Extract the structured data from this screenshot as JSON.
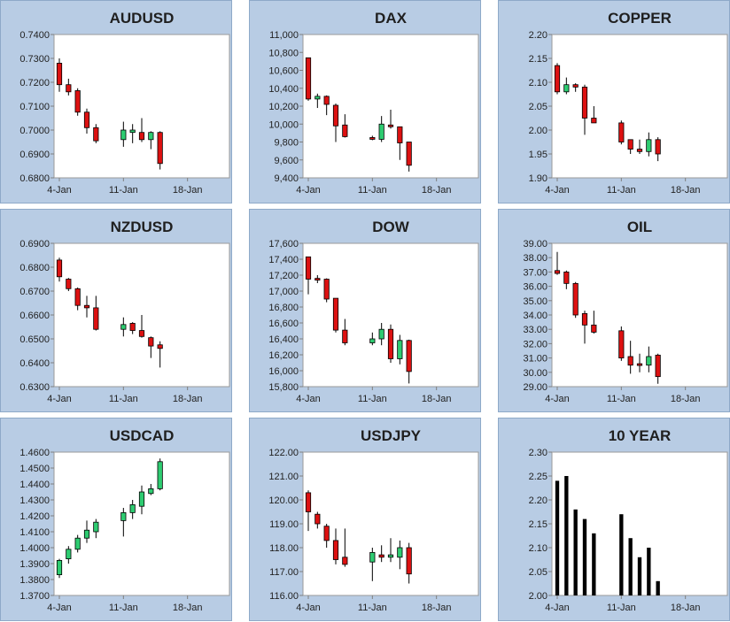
{
  "chart_data": [
    {
      "id": "audusd",
      "type": "candlestick",
      "title": "AUDUSD",
      "ylim": [
        0.68,
        0.74
      ],
      "yticks": [
        0.68,
        0.69,
        0.7,
        0.71,
        0.72,
        0.73,
        0.74
      ],
      "ydecimals": 4,
      "xlim": [
        4,
        22
      ],
      "xticks": [
        {
          "x": 4,
          "label": "4-Jan"
        },
        {
          "x": 11,
          "label": "11-Jan"
        },
        {
          "x": 18,
          "label": "18-Jan"
        }
      ],
      "candles": [
        {
          "x": 4,
          "o": 0.728,
          "h": 0.73,
          "l": 0.716,
          "c": 0.719,
          "dir": "down"
        },
        {
          "x": 5,
          "o": 0.719,
          "h": 0.7215,
          "l": 0.7145,
          "c": 0.716,
          "dir": "down"
        },
        {
          "x": 6,
          "o": 0.7165,
          "h": 0.7175,
          "l": 0.706,
          "c": 0.7075,
          "dir": "down"
        },
        {
          "x": 7,
          "o": 0.7075,
          "h": 0.709,
          "l": 0.6985,
          "c": 0.701,
          "dir": "down"
        },
        {
          "x": 8,
          "o": 0.701,
          "h": 0.7025,
          "l": 0.6945,
          "c": 0.6955,
          "dir": "down"
        },
        {
          "x": 11,
          "o": 0.696,
          "h": 0.7035,
          "l": 0.693,
          "c": 0.7,
          "dir": "up"
        },
        {
          "x": 12,
          "o": 0.699,
          "h": 0.7025,
          "l": 0.6945,
          "c": 0.7,
          "dir": "up"
        },
        {
          "x": 13,
          "o": 0.699,
          "h": 0.705,
          "l": 0.695,
          "c": 0.696,
          "dir": "down"
        },
        {
          "x": 14,
          "o": 0.696,
          "h": 0.6995,
          "l": 0.692,
          "c": 0.699,
          "dir": "up"
        },
        {
          "x": 15,
          "o": 0.699,
          "h": 0.6995,
          "l": 0.6835,
          "c": 0.686,
          "dir": "down"
        }
      ]
    },
    {
      "id": "dax",
      "type": "candlestick",
      "title": "DAX",
      "ylim": [
        9400,
        11000
      ],
      "yticks": [
        9400,
        9600,
        9800,
        10000,
        10200,
        10400,
        10600,
        10800,
        11000
      ],
      "ydecimals": 0,
      "xlim": [
        4,
        22
      ],
      "xticks": [
        {
          "x": 4,
          "label": "4-Jan"
        },
        {
          "x": 11,
          "label": "11-Jan"
        },
        {
          "x": 18,
          "label": "18-Jan"
        }
      ],
      "candles": [
        {
          "x": 4,
          "o": 10740,
          "h": 10740,
          "l": 10260,
          "c": 10280,
          "dir": "down"
        },
        {
          "x": 5,
          "o": 10280,
          "h": 10340,
          "l": 10180,
          "c": 10310,
          "dir": "up"
        },
        {
          "x": 6,
          "o": 10310,
          "h": 10320,
          "l": 10100,
          "c": 10220,
          "dir": "down"
        },
        {
          "x": 7,
          "o": 10210,
          "h": 10230,
          "l": 9800,
          "c": 9980,
          "dir": "down"
        },
        {
          "x": 8,
          "o": 9990,
          "h": 10110,
          "l": 9850,
          "c": 9860,
          "dir": "down"
        },
        {
          "x": 11,
          "o": 9850,
          "h": 9870,
          "l": 9820,
          "c": 9830,
          "dir": "down"
        },
        {
          "x": 12,
          "o": 9830,
          "h": 10090,
          "l": 9800,
          "c": 10000,
          "dir": "up"
        },
        {
          "x": 13,
          "o": 9990,
          "h": 10160,
          "l": 9950,
          "c": 9970,
          "dir": "down"
        },
        {
          "x": 14,
          "o": 9970,
          "h": 9970,
          "l": 9600,
          "c": 9790,
          "dir": "down"
        },
        {
          "x": 15,
          "o": 9800,
          "h": 9800,
          "l": 9470,
          "c": 9540,
          "dir": "down"
        }
      ]
    },
    {
      "id": "copper",
      "type": "candlestick",
      "title": "COPPER",
      "ylim": [
        1.9,
        2.2
      ],
      "yticks": [
        1.9,
        1.95,
        2.0,
        2.05,
        2.1,
        2.15,
        2.2
      ],
      "ydecimals": 2,
      "xlim": [
        4,
        22
      ],
      "xticks": [
        {
          "x": 4,
          "label": "4-Jan"
        },
        {
          "x": 11,
          "label": "11-Jan"
        },
        {
          "x": 18,
          "label": "18-Jan"
        }
      ],
      "candles": [
        {
          "x": 4,
          "o": 2.135,
          "h": 2.14,
          "l": 2.075,
          "c": 2.08,
          "dir": "down"
        },
        {
          "x": 5,
          "o": 2.08,
          "h": 2.11,
          "l": 2.075,
          "c": 2.095,
          "dir": "up"
        },
        {
          "x": 6,
          "o": 2.095,
          "h": 2.098,
          "l": 2.08,
          "c": 2.09,
          "dir": "down"
        },
        {
          "x": 7,
          "o": 2.09,
          "h": 2.095,
          "l": 1.99,
          "c": 2.025,
          "dir": "down"
        },
        {
          "x": 8,
          "o": 2.025,
          "h": 2.05,
          "l": 2.015,
          "c": 2.015,
          "dir": "down"
        },
        {
          "x": 11,
          "o": 2.015,
          "h": 2.02,
          "l": 1.97,
          "c": 1.975,
          "dir": "down"
        },
        {
          "x": 12,
          "o": 1.98,
          "h": 1.98,
          "l": 1.95,
          "c": 1.96,
          "dir": "down"
        },
        {
          "x": 13,
          "o": 1.96,
          "h": 1.98,
          "l": 1.95,
          "c": 1.955,
          "dir": "down"
        },
        {
          "x": 14,
          "o": 1.955,
          "h": 1.995,
          "l": 1.945,
          "c": 1.98,
          "dir": "up"
        },
        {
          "x": 15,
          "o": 1.98,
          "h": 1.985,
          "l": 1.935,
          "c": 1.95,
          "dir": "down"
        }
      ]
    },
    {
      "id": "nzdusd",
      "type": "candlestick",
      "title": "NZDUSD",
      "ylim": [
        0.63,
        0.69
      ],
      "yticks": [
        0.63,
        0.64,
        0.65,
        0.66,
        0.67,
        0.68,
        0.69
      ],
      "ydecimals": 4,
      "xlim": [
        4,
        22
      ],
      "xticks": [
        {
          "x": 4,
          "label": "4-Jan"
        },
        {
          "x": 11,
          "label": "11-Jan"
        },
        {
          "x": 18,
          "label": "18-Jan"
        }
      ],
      "candles": [
        {
          "x": 4,
          "o": 0.683,
          "h": 0.684,
          "l": 0.674,
          "c": 0.676,
          "dir": "down"
        },
        {
          "x": 5,
          "o": 0.675,
          "h": 0.6755,
          "l": 0.67,
          "c": 0.671,
          "dir": "down"
        },
        {
          "x": 6,
          "o": 0.671,
          "h": 0.6715,
          "l": 0.662,
          "c": 0.664,
          "dir": "down"
        },
        {
          "x": 7,
          "o": 0.664,
          "h": 0.668,
          "l": 0.659,
          "c": 0.663,
          "dir": "down"
        },
        {
          "x": 8,
          "o": 0.663,
          "h": 0.668,
          "l": 0.6535,
          "c": 0.654,
          "dir": "down"
        },
        {
          "x": 11,
          "o": 0.654,
          "h": 0.659,
          "l": 0.651,
          "c": 0.656,
          "dir": "up"
        },
        {
          "x": 12,
          "o": 0.6565,
          "h": 0.657,
          "l": 0.652,
          "c": 0.6535,
          "dir": "down"
        },
        {
          "x": 13,
          "o": 0.6535,
          "h": 0.66,
          "l": 0.6505,
          "c": 0.651,
          "dir": "down"
        },
        {
          "x": 14,
          "o": 0.6505,
          "h": 0.651,
          "l": 0.642,
          "c": 0.647,
          "dir": "down"
        },
        {
          "x": 15,
          "o": 0.6475,
          "h": 0.649,
          "l": 0.638,
          "c": 0.646,
          "dir": "down"
        }
      ]
    },
    {
      "id": "dow",
      "type": "candlestick",
      "title": "DOW",
      "ylim": [
        15800,
        17600
      ],
      "yticks": [
        15800,
        16000,
        16200,
        16400,
        16600,
        16800,
        17000,
        17200,
        17400,
        17600
      ],
      "ydecimals": 0,
      "xlim": [
        4,
        22
      ],
      "xticks": [
        {
          "x": 4,
          "label": "4-Jan"
        },
        {
          "x": 11,
          "label": "11-Jan"
        },
        {
          "x": 18,
          "label": "18-Jan"
        }
      ],
      "candles": [
        {
          "x": 4,
          "o": 17430,
          "h": 17430,
          "l": 16960,
          "c": 17150,
          "dir": "down"
        },
        {
          "x": 5,
          "o": 17160,
          "h": 17200,
          "l": 17100,
          "c": 17150,
          "dir": "down"
        },
        {
          "x": 6,
          "o": 17150,
          "h": 17160,
          "l": 16860,
          "c": 16900,
          "dir": "down"
        },
        {
          "x": 7,
          "o": 16910,
          "h": 16910,
          "l": 16480,
          "c": 16510,
          "dir": "down"
        },
        {
          "x": 8,
          "o": 16510,
          "h": 16650,
          "l": 16320,
          "c": 16350,
          "dir": "down"
        },
        {
          "x": 11,
          "o": 16350,
          "h": 16480,
          "l": 16320,
          "c": 16400,
          "dir": "up"
        },
        {
          "x": 12,
          "o": 16400,
          "h": 16600,
          "l": 16320,
          "c": 16520,
          "dir": "up"
        },
        {
          "x": 13,
          "o": 16520,
          "h": 16580,
          "l": 16100,
          "c": 16150,
          "dir": "down"
        },
        {
          "x": 14,
          "o": 16150,
          "h": 16450,
          "l": 16080,
          "c": 16380,
          "dir": "up"
        },
        {
          "x": 15,
          "o": 16380,
          "h": 16390,
          "l": 15840,
          "c": 15990,
          "dir": "down"
        }
      ]
    },
    {
      "id": "oil",
      "type": "candlestick",
      "title": "OIL",
      "ylim": [
        29,
        39
      ],
      "yticks": [
        29,
        30,
        31,
        32,
        33,
        34,
        35,
        36,
        37,
        38,
        39
      ],
      "ydecimals": 2,
      "xlim": [
        4,
        22
      ],
      "xticks": [
        {
          "x": 4,
          "label": "4-Jan"
        },
        {
          "x": 11,
          "label": "11-Jan"
        },
        {
          "x": 18,
          "label": "18-Jan"
        }
      ],
      "candles": [
        {
          "x": 4,
          "o": 37.1,
          "h": 38.4,
          "l": 36.8,
          "c": 36.9,
          "dir": "down"
        },
        {
          "x": 5,
          "o": 37.0,
          "h": 37.1,
          "l": 35.8,
          "c": 36.2,
          "dir": "down"
        },
        {
          "x": 6,
          "o": 36.2,
          "h": 36.3,
          "l": 33.8,
          "c": 34.0,
          "dir": "down"
        },
        {
          "x": 7,
          "o": 34.1,
          "h": 34.3,
          "l": 32.0,
          "c": 33.3,
          "dir": "down"
        },
        {
          "x": 8,
          "o": 33.3,
          "h": 34.3,
          "l": 32.7,
          "c": 32.8,
          "dir": "down"
        },
        {
          "x": 11,
          "o": 32.9,
          "h": 33.2,
          "l": 30.8,
          "c": 31.0,
          "dir": "down"
        },
        {
          "x": 12,
          "o": 31.1,
          "h": 32.2,
          "l": 29.9,
          "c": 30.5,
          "dir": "down"
        },
        {
          "x": 13,
          "o": 30.6,
          "h": 31.3,
          "l": 30.0,
          "c": 30.5,
          "dir": "down"
        },
        {
          "x": 14,
          "o": 30.5,
          "h": 31.8,
          "l": 30.0,
          "c": 31.1,
          "dir": "up"
        },
        {
          "x": 15,
          "o": 31.2,
          "h": 31.3,
          "l": 29.2,
          "c": 29.7,
          "dir": "down"
        }
      ]
    },
    {
      "id": "usdcad",
      "type": "candlestick",
      "title": "USDCAD",
      "ylim": [
        1.37,
        1.46
      ],
      "yticks": [
        1.37,
        1.38,
        1.39,
        1.4,
        1.41,
        1.42,
        1.43,
        1.44,
        1.45,
        1.46
      ],
      "ydecimals": 4,
      "xlim": [
        4,
        22
      ],
      "xticks": [
        {
          "x": 4,
          "label": "4-Jan"
        },
        {
          "x": 11,
          "label": "11-Jan"
        },
        {
          "x": 18,
          "label": "18-Jan"
        }
      ],
      "candles": [
        {
          "x": 4,
          "o": 1.383,
          "h": 1.393,
          "l": 1.381,
          "c": 1.392,
          "dir": "up"
        },
        {
          "x": 5,
          "o": 1.393,
          "h": 1.401,
          "l": 1.39,
          "c": 1.399,
          "dir": "up"
        },
        {
          "x": 6,
          "o": 1.399,
          "h": 1.408,
          "l": 1.397,
          "c": 1.406,
          "dir": "up"
        },
        {
          "x": 7,
          "o": 1.406,
          "h": 1.417,
          "l": 1.403,
          "c": 1.411,
          "dir": "up"
        },
        {
          "x": 8,
          "o": 1.41,
          "h": 1.418,
          "l": 1.406,
          "c": 1.416,
          "dir": "up"
        },
        {
          "x": 11,
          "o": 1.417,
          "h": 1.425,
          "l": 1.407,
          "c": 1.422,
          "dir": "up"
        },
        {
          "x": 12,
          "o": 1.422,
          "h": 1.43,
          "l": 1.418,
          "c": 1.427,
          "dir": "up"
        },
        {
          "x": 13,
          "o": 1.426,
          "h": 1.439,
          "l": 1.421,
          "c": 1.435,
          "dir": "up"
        },
        {
          "x": 14,
          "o": 1.434,
          "h": 1.44,
          "l": 1.433,
          "c": 1.437,
          "dir": "up"
        },
        {
          "x": 15,
          "o": 1.437,
          "h": 1.456,
          "l": 1.436,
          "c": 1.454,
          "dir": "up"
        }
      ]
    },
    {
      "id": "usdjpy",
      "type": "candlestick",
      "title": "USDJPY",
      "ylim": [
        116,
        122
      ],
      "yticks": [
        116,
        117,
        118,
        119,
        120,
        121,
        122
      ],
      "ydecimals": 2,
      "xlim": [
        4,
        22
      ],
      "xticks": [
        {
          "x": 4,
          "label": "4-Jan"
        },
        {
          "x": 11,
          "label": "11-Jan"
        },
        {
          "x": 18,
          "label": "18-Jan"
        }
      ],
      "candles": [
        {
          "x": 4,
          "o": 120.3,
          "h": 120.4,
          "l": 118.7,
          "c": 119.5,
          "dir": "down"
        },
        {
          "x": 5,
          "o": 119.4,
          "h": 119.5,
          "l": 118.8,
          "c": 119.0,
          "dir": "down"
        },
        {
          "x": 6,
          "o": 118.9,
          "h": 119.0,
          "l": 118.0,
          "c": 118.3,
          "dir": "down"
        },
        {
          "x": 7,
          "o": 118.3,
          "h": 118.8,
          "l": 117.3,
          "c": 117.5,
          "dir": "down"
        },
        {
          "x": 8,
          "o": 117.6,
          "h": 118.8,
          "l": 117.2,
          "c": 117.3,
          "dir": "down"
        },
        {
          "x": 11,
          "o": 117.4,
          "h": 118.0,
          "l": 116.6,
          "c": 117.8,
          "dir": "up"
        },
        {
          "x": 12,
          "o": 117.7,
          "h": 118.1,
          "l": 117.4,
          "c": 117.6,
          "dir": "down"
        },
        {
          "x": 13,
          "o": 117.6,
          "h": 118.4,
          "l": 117.4,
          "c": 117.7,
          "dir": "up"
        },
        {
          "x": 14,
          "o": 117.6,
          "h": 118.3,
          "l": 117.1,
          "c": 118.0,
          "dir": "up"
        },
        {
          "x": 15,
          "o": 118.0,
          "h": 118.2,
          "l": 116.5,
          "c": 116.9,
          "dir": "down"
        }
      ]
    },
    {
      "id": "tenyear",
      "type": "bar",
      "title": "10 YEAR",
      "ylim": [
        2.0,
        2.3
      ],
      "yticks": [
        2.0,
        2.05,
        2.1,
        2.15,
        2.2,
        2.25,
        2.3
      ],
      "ydecimals": 2,
      "xlim": [
        4,
        22
      ],
      "xticks": [
        {
          "x": 4,
          "label": "4-Jan"
        },
        {
          "x": 11,
          "label": "11-Jan"
        },
        {
          "x": 18,
          "label": "18-Jan"
        }
      ],
      "bars": [
        {
          "x": 4,
          "v": 2.24
        },
        {
          "x": 5,
          "v": 2.25
        },
        {
          "x": 6,
          "v": 2.18
        },
        {
          "x": 7,
          "v": 2.16
        },
        {
          "x": 8,
          "v": 2.13
        },
        {
          "x": 11,
          "v": 2.17
        },
        {
          "x": 12,
          "v": 2.12
        },
        {
          "x": 13,
          "v": 2.08
        },
        {
          "x": 14,
          "v": 2.1
        },
        {
          "x": 15,
          "v": 2.03
        }
      ]
    }
  ],
  "colors": {
    "up_fill": "#2ecc71",
    "down_fill": "#dd1111",
    "bar_fill": "#000000",
    "panel_bg": "#b8cce4",
    "plot_bg": "#ffffff"
  }
}
